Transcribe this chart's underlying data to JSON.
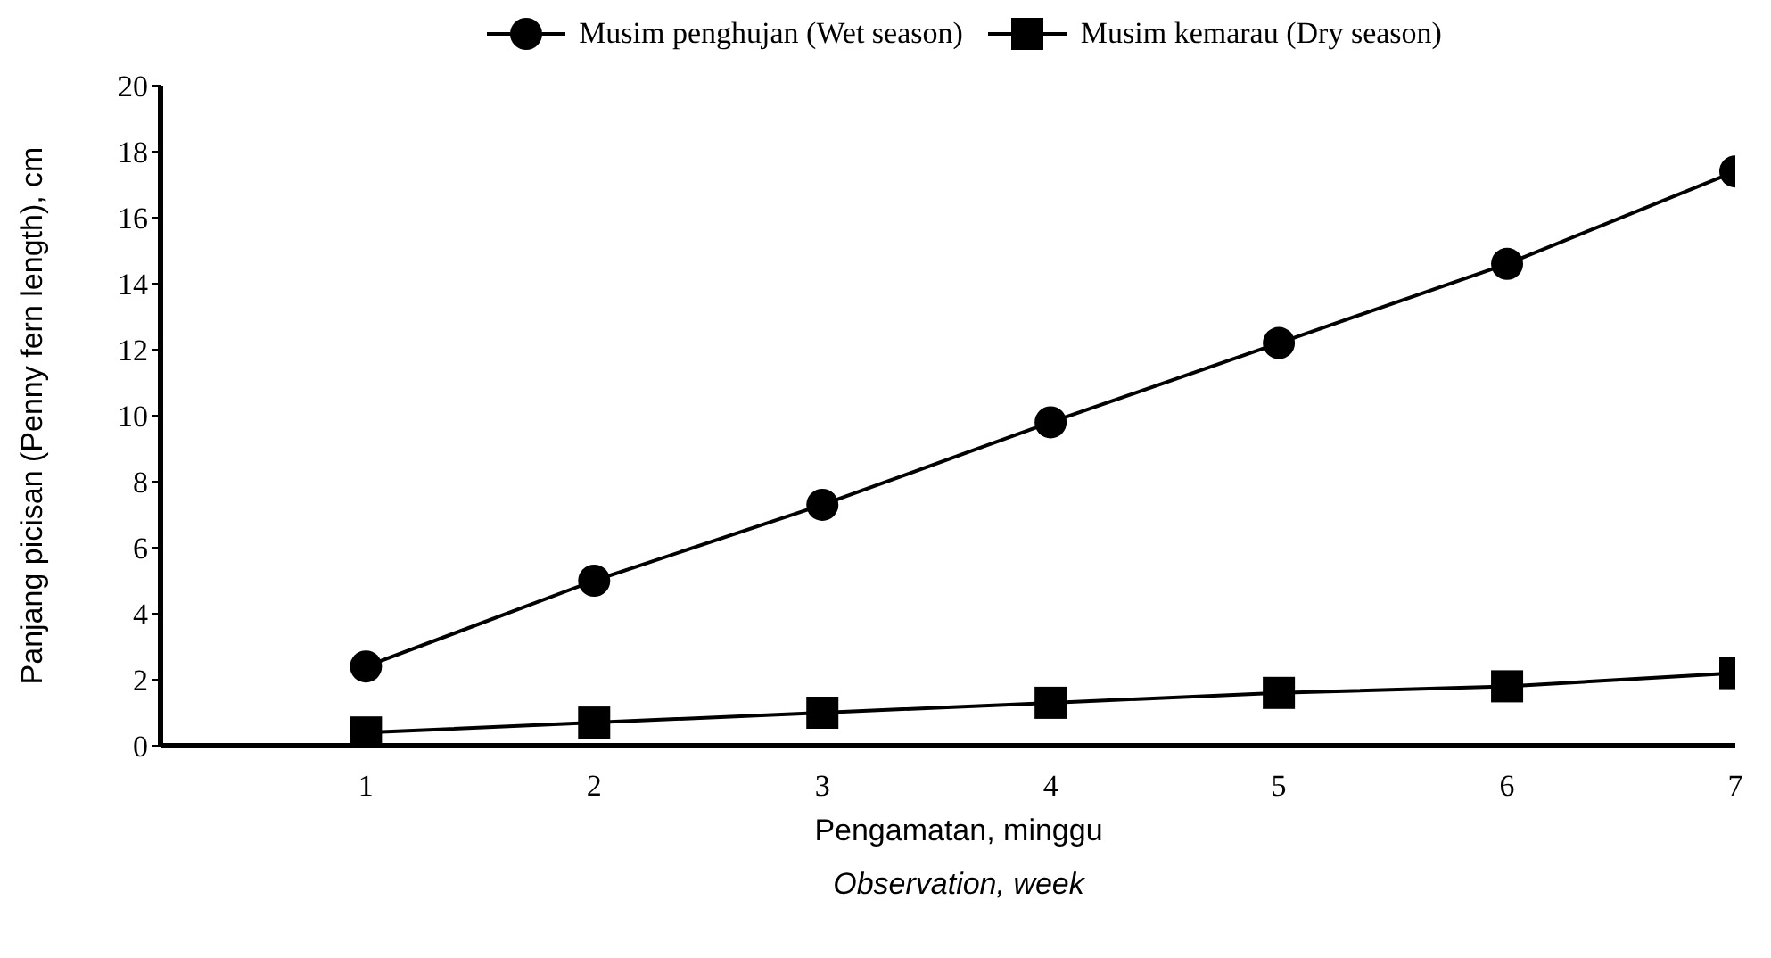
{
  "chart_data": {
    "type": "line",
    "xlabel": "Pengamatan, minggu\nObservation, week",
    "ylabel": "Panjang picisan (Penny fern length), cm",
    "x": [
      1,
      2,
      3,
      4,
      5,
      6,
      7
    ],
    "series": [
      {
        "name": "Musim penghujan (Wet season)",
        "color": "#000000",
        "marker": "circle",
        "values": [
          2.4,
          5.0,
          7.3,
          9.8,
          12.2,
          14.6,
          17.4
        ]
      },
      {
        "name": "Musim kemarau (Dry season)",
        "color": "#000000",
        "marker": "square",
        "values": [
          0.4,
          0.7,
          1.0,
          1.3,
          1.6,
          1.8,
          2.2
        ]
      }
    ],
    "xlim": [
      0.1,
      7
    ],
    "xticks": [
      1,
      2,
      3,
      4,
      5,
      6,
      7
    ],
    "ylim": [
      0,
      20
    ],
    "yticks": [
      0,
      2,
      4,
      6,
      8,
      10,
      12,
      14,
      16,
      18,
      20
    ],
    "grid": false,
    "legend": "top",
    "line_style": "solid"
  }
}
